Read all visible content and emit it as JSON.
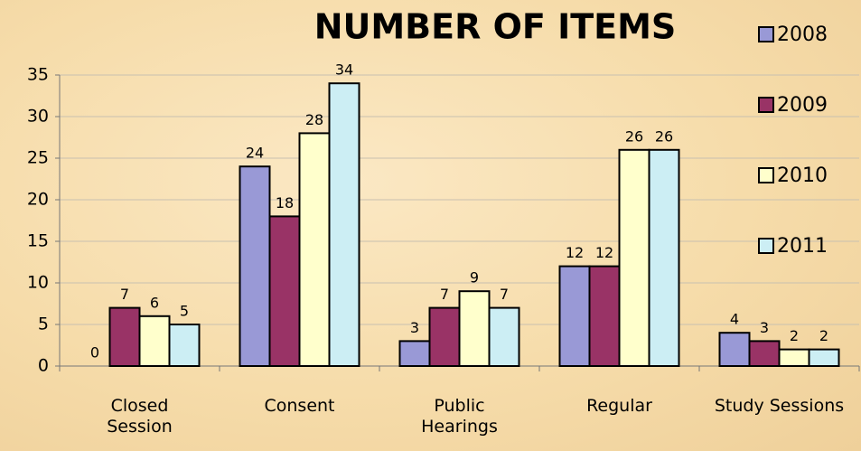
{
  "chart_data": {
    "type": "bar",
    "title": "NUMBER OF ITEMS",
    "categories": [
      "Closed Session",
      "Consent",
      "Public Hearings",
      "Regular",
      "Study Sessions"
    ],
    "series": [
      {
        "name": "2008",
        "color": "#9999d6",
        "values": [
          0,
          24,
          3,
          12,
          4
        ]
      },
      {
        "name": "2009",
        "color": "#993366",
        "values": [
          7,
          18,
          7,
          12,
          3
        ]
      },
      {
        "name": "2010",
        "color": "#ffffcc",
        "values": [
          6,
          28,
          9,
          26,
          2
        ]
      },
      {
        "name": "2011",
        "color": "#cceef4",
        "values": [
          5,
          34,
          7,
          26,
          2
        ]
      }
    ],
    "ylim": [
      0,
      35
    ],
    "yticks": [
      0,
      5,
      10,
      15,
      20,
      25,
      30,
      35
    ],
    "grid": true,
    "legend": "right"
  }
}
